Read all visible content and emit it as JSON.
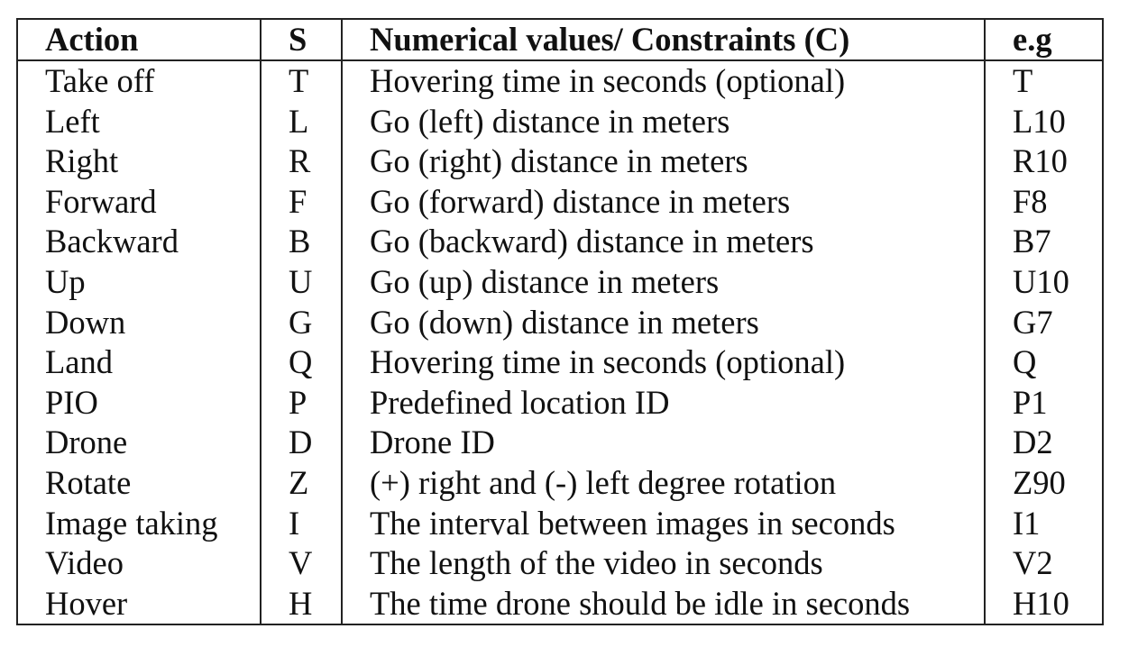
{
  "table": {
    "headers": [
      "Action",
      "S",
      "Numerical values/ Constraints (C)",
      "e.g"
    ],
    "rows": [
      [
        "Take off",
        "T",
        "Hovering time in seconds (optional)",
        "T"
      ],
      [
        "Left",
        "L",
        "Go (left) distance in meters",
        "L10"
      ],
      [
        "Right",
        "R",
        "Go (right) distance in meters",
        "R10"
      ],
      [
        "Forward",
        "F",
        "Go (forward) distance in meters",
        "F8"
      ],
      [
        "Backward",
        "B",
        "Go (backward) distance in meters",
        "B7"
      ],
      [
        "Up",
        "U",
        "Go (up) distance in meters",
        "U10"
      ],
      [
        "Down",
        "G",
        "Go (down) distance in meters",
        "G7"
      ],
      [
        "Land",
        "Q",
        "Hovering time in seconds (optional)",
        "Q"
      ],
      [
        "PIO",
        "P",
        "Predefined location ID",
        "P1"
      ],
      [
        "Drone",
        "D",
        "Drone ID",
        "D2"
      ],
      [
        "Rotate",
        "Z",
        "(+) right and (-) left degree rotation",
        "Z90"
      ],
      [
        "Image taking",
        "I",
        "The interval between images in seconds",
        "I1"
      ],
      [
        "Video",
        "V",
        "The length of the video in seconds",
        "V2"
      ],
      [
        "Hover",
        "H",
        "The time drone should be idle in seconds",
        "H10"
      ]
    ]
  }
}
